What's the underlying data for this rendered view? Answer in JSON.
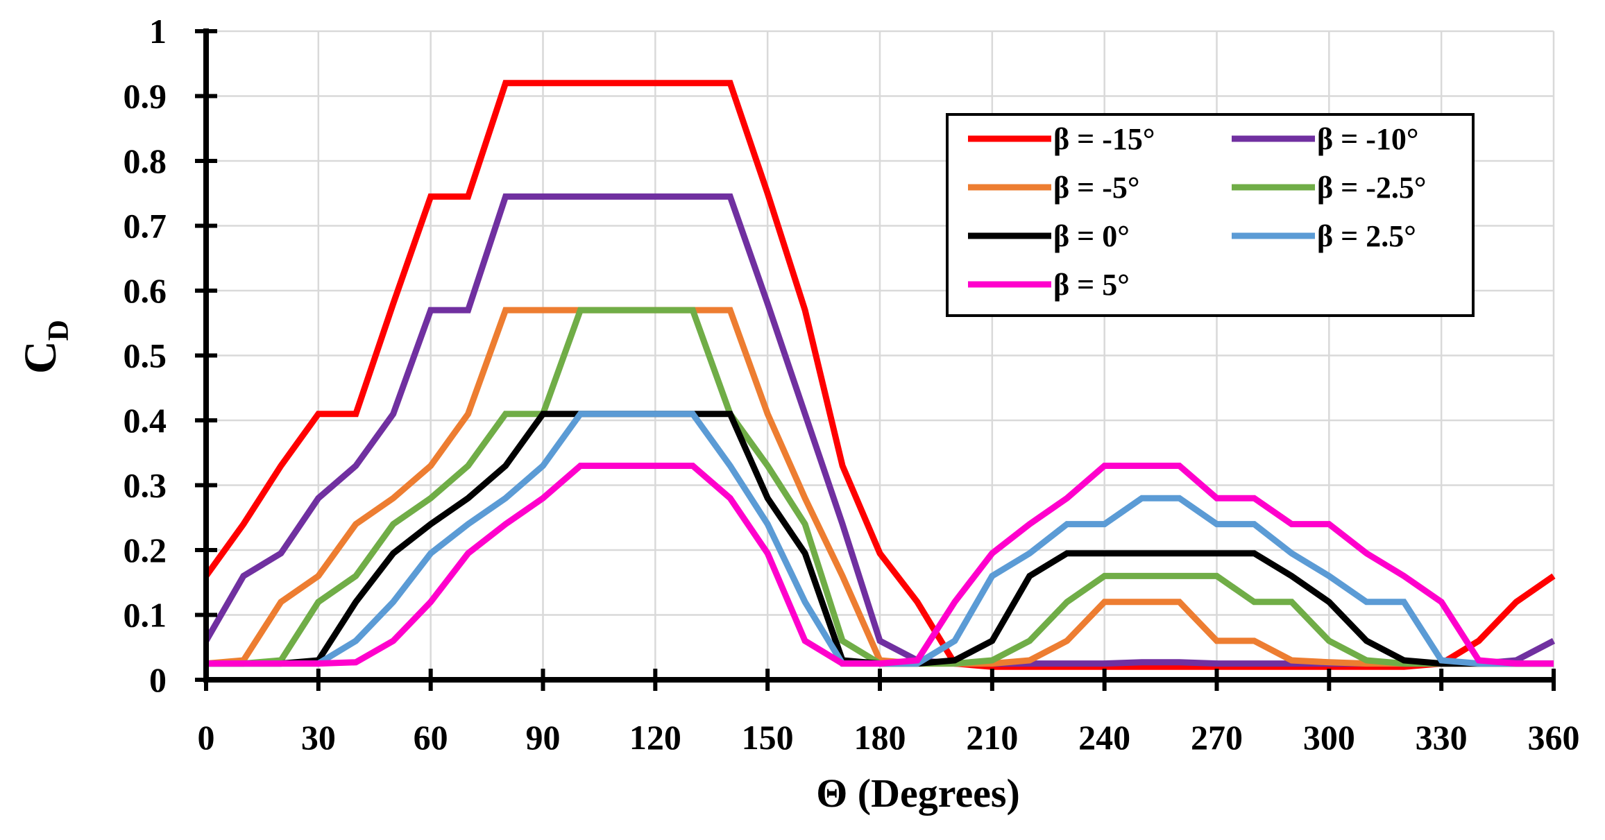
{
  "chart_data": {
    "type": "line",
    "title": "",
    "xlabel": "Θ (Degrees)",
    "ylabel_main": "C",
    "ylabel_sub": "D",
    "xlim": [
      0,
      360
    ],
    "ylim": [
      0,
      1
    ],
    "grid": true,
    "legend_position": "top-right",
    "x_ticks": [
      0,
      30,
      60,
      90,
      120,
      150,
      180,
      210,
      240,
      270,
      300,
      330,
      360
    ],
    "x_tick_labels": [
      "0",
      "30",
      "60",
      "90",
      "120",
      "150",
      "180",
      "210",
      "240",
      "270",
      "300",
      "330",
      "360"
    ],
    "y_ticks": [
      0,
      0.1,
      0.2,
      0.3,
      0.4,
      0.5,
      0.6,
      0.7,
      0.8,
      0.9,
      1
    ],
    "y_tick_labels": [
      "0",
      "0.1",
      "0.2",
      "0.3",
      "0.4",
      "0.5",
      "0.6",
      "0.7",
      "0.8",
      "0.9",
      "1"
    ],
    "x": [
      0,
      10,
      20,
      30,
      40,
      50,
      60,
      70,
      80,
      90,
      100,
      110,
      120,
      130,
      140,
      150,
      160,
      170,
      180,
      190,
      200,
      210,
      220,
      230,
      240,
      250,
      260,
      270,
      280,
      290,
      300,
      310,
      320,
      330,
      340,
      350,
      360
    ],
    "series": [
      {
        "name": "β = -15°",
        "color": "#ff0000",
        "values": [
          0.16,
          0.24,
          0.33,
          0.41,
          0.41,
          0.58,
          0.745,
          0.745,
          0.92,
          0.92,
          0.92,
          0.92,
          0.92,
          0.92,
          0.92,
          0.75,
          0.57,
          0.33,
          0.195,
          0.12,
          0.025,
          0.02,
          0.02,
          0.02,
          0.02,
          0.02,
          0.02,
          0.02,
          0.02,
          0.02,
          0.02,
          0.02,
          0.02,
          0.025,
          0.06,
          0.12,
          0.16
        ]
      },
      {
        "name": "β = -10°",
        "color": "#7030a0",
        "values": [
          0.06,
          0.16,
          0.195,
          0.28,
          0.33,
          0.41,
          0.57,
          0.57,
          0.745,
          0.745,
          0.745,
          0.745,
          0.745,
          0.745,
          0.745,
          0.58,
          0.41,
          0.24,
          0.06,
          0.03,
          0.025,
          0.025,
          0.025,
          0.025,
          0.025,
          0.027,
          0.027,
          0.025,
          0.025,
          0.025,
          0.025,
          0.025,
          0.025,
          0.025,
          0.025,
          0.03,
          0.06
        ]
      },
      {
        "name": "β = -5°",
        "color": "#ed7d31",
        "values": [
          0.025,
          0.03,
          0.12,
          0.16,
          0.24,
          0.28,
          0.33,
          0.41,
          0.57,
          0.57,
          0.57,
          0.57,
          0.57,
          0.57,
          0.57,
          0.41,
          0.28,
          0.16,
          0.03,
          0.025,
          0.025,
          0.025,
          0.03,
          0.06,
          0.12,
          0.12,
          0.12,
          0.06,
          0.06,
          0.03,
          0.027,
          0.025,
          0.025,
          0.025,
          0.025,
          0.025,
          0.025
        ]
      },
      {
        "name": "β = -2.5°",
        "color": "#70ad47",
        "values": [
          0.025,
          0.025,
          0.03,
          0.12,
          0.16,
          0.24,
          0.28,
          0.33,
          0.41,
          0.41,
          0.57,
          0.57,
          0.57,
          0.57,
          0.41,
          0.33,
          0.24,
          0.06,
          0.025,
          0.025,
          0.025,
          0.03,
          0.06,
          0.12,
          0.16,
          0.16,
          0.16,
          0.16,
          0.12,
          0.12,
          0.06,
          0.03,
          0.025,
          0.025,
          0.025,
          0.025,
          0.025
        ]
      },
      {
        "name": "β = 0°",
        "color": "#000000",
        "values": [
          0.025,
          0.025,
          0.025,
          0.03,
          0.12,
          0.195,
          0.24,
          0.28,
          0.33,
          0.41,
          0.41,
          0.41,
          0.41,
          0.41,
          0.41,
          0.28,
          0.195,
          0.03,
          0.025,
          0.025,
          0.03,
          0.06,
          0.16,
          0.195,
          0.195,
          0.195,
          0.195,
          0.195,
          0.195,
          0.16,
          0.12,
          0.06,
          0.03,
          0.025,
          0.025,
          0.025,
          0.025
        ]
      },
      {
        "name": "β = 2.5°",
        "color": "#5b9bd5",
        "values": [
          0.025,
          0.025,
          0.025,
          0.025,
          0.06,
          0.12,
          0.195,
          0.24,
          0.28,
          0.33,
          0.41,
          0.41,
          0.41,
          0.41,
          0.33,
          0.24,
          0.12,
          0.025,
          0.025,
          0.025,
          0.06,
          0.16,
          0.195,
          0.24,
          0.24,
          0.28,
          0.28,
          0.24,
          0.24,
          0.195,
          0.16,
          0.12,
          0.12,
          0.03,
          0.025,
          0.025,
          0.025
        ]
      },
      {
        "name": "β = 5°",
        "color": "#ff00cc",
        "values": [
          0.025,
          0.025,
          0.025,
          0.025,
          0.027,
          0.06,
          0.12,
          0.195,
          0.24,
          0.28,
          0.33,
          0.33,
          0.33,
          0.33,
          0.28,
          0.195,
          0.06,
          0.025,
          0.025,
          0.03,
          0.12,
          0.195,
          0.24,
          0.28,
          0.33,
          0.33,
          0.33,
          0.28,
          0.28,
          0.24,
          0.24,
          0.195,
          0.16,
          0.12,
          0.03,
          0.025,
          0.025
        ]
      }
    ]
  }
}
